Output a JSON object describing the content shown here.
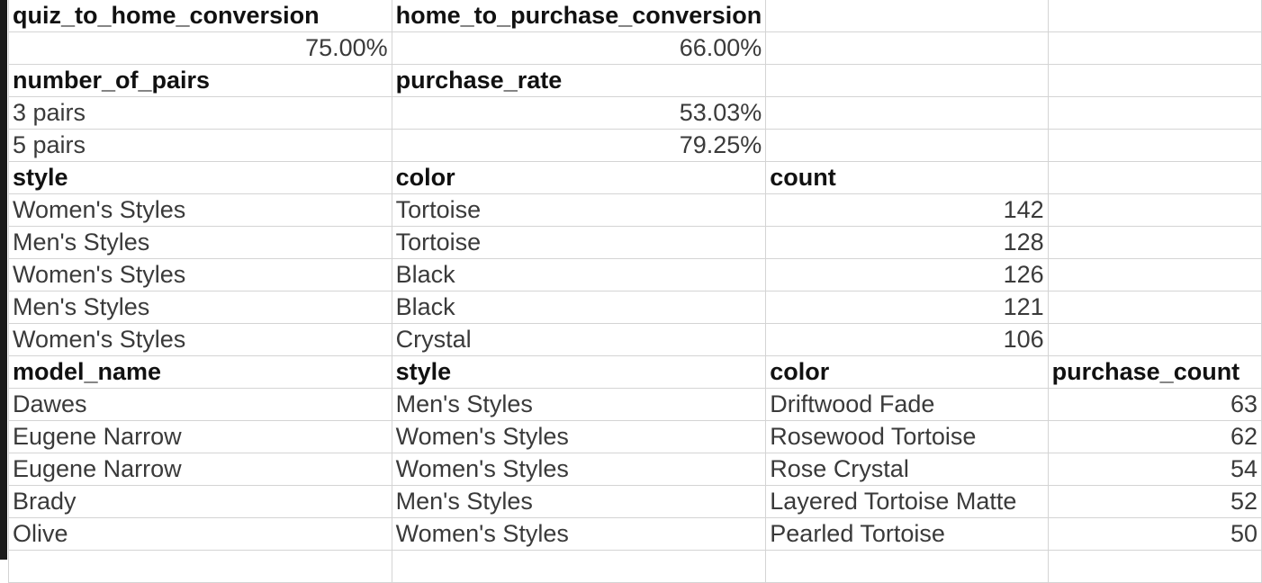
{
  "rows": [
    [
      {
        "t": "quiz_to_home_conversion",
        "h": true
      },
      {
        "t": "home_to_purchase_conversion",
        "h": true
      },
      {
        "t": ""
      },
      {
        "t": ""
      }
    ],
    [
      {
        "t": "75.00%",
        "n": true
      },
      {
        "t": "66.00%",
        "n": true
      },
      {
        "t": ""
      },
      {
        "t": ""
      }
    ],
    [
      {
        "t": "number_of_pairs",
        "h": true
      },
      {
        "t": "purchase_rate",
        "h": true
      },
      {
        "t": ""
      },
      {
        "t": ""
      }
    ],
    [
      {
        "t": "3 pairs"
      },
      {
        "t": "53.03%",
        "n": true
      },
      {
        "t": ""
      },
      {
        "t": ""
      }
    ],
    [
      {
        "t": "5 pairs"
      },
      {
        "t": "79.25%",
        "n": true
      },
      {
        "t": ""
      },
      {
        "t": ""
      }
    ],
    [
      {
        "t": "style",
        "h": true
      },
      {
        "t": "color",
        "h": true
      },
      {
        "t": "count",
        "h": true
      },
      {
        "t": ""
      }
    ],
    [
      {
        "t": "Women's Styles"
      },
      {
        "t": "Tortoise"
      },
      {
        "t": "142",
        "n": true
      },
      {
        "t": ""
      }
    ],
    [
      {
        "t": "Men's Styles"
      },
      {
        "t": "Tortoise"
      },
      {
        "t": "128",
        "n": true
      },
      {
        "t": ""
      }
    ],
    [
      {
        "t": "Women's Styles"
      },
      {
        "t": "Black"
      },
      {
        "t": "126",
        "n": true
      },
      {
        "t": ""
      }
    ],
    [
      {
        "t": "Men's Styles"
      },
      {
        "t": "Black"
      },
      {
        "t": "121",
        "n": true
      },
      {
        "t": ""
      }
    ],
    [
      {
        "t": "Women's Styles"
      },
      {
        "t": "Crystal"
      },
      {
        "t": "106",
        "n": true
      },
      {
        "t": ""
      }
    ],
    [
      {
        "t": "model_name",
        "h": true
      },
      {
        "t": "style",
        "h": true
      },
      {
        "t": "color",
        "h": true
      },
      {
        "t": "purchase_count",
        "h": true
      }
    ],
    [
      {
        "t": "Dawes"
      },
      {
        "t": "Men's Styles"
      },
      {
        "t": "Driftwood Fade"
      },
      {
        "t": "63",
        "n": true
      }
    ],
    [
      {
        "t": "Eugene Narrow"
      },
      {
        "t": "Women's Styles"
      },
      {
        "t": "Rosewood Tortoise"
      },
      {
        "t": "62",
        "n": true
      }
    ],
    [
      {
        "t": "Eugene Narrow"
      },
      {
        "t": "Women's Styles"
      },
      {
        "t": "Rose Crystal"
      },
      {
        "t": "54",
        "n": true
      }
    ],
    [
      {
        "t": "Brady"
      },
      {
        "t": "Men's Styles"
      },
      {
        "t": "Layered Tortoise Matte"
      },
      {
        "t": "52",
        "n": true
      }
    ],
    [
      {
        "t": "Olive"
      },
      {
        "t": "Women's Styles"
      },
      {
        "t": "Pearled Tortoise"
      },
      {
        "t": "50",
        "n": true
      }
    ],
    [
      {
        "t": ""
      },
      {
        "t": ""
      },
      {
        "t": ""
      },
      {
        "t": ""
      }
    ]
  ]
}
